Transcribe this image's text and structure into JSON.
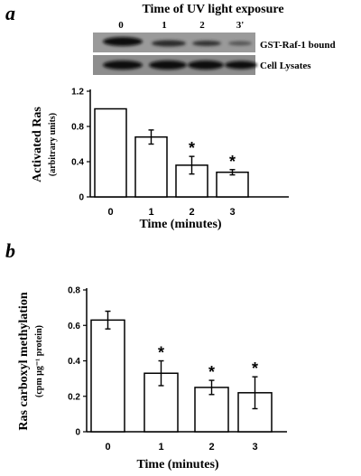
{
  "blot": {
    "title": "Time of UV light exposure",
    "lanes": [
      "0",
      "1",
      "2",
      "3'"
    ],
    "rows": [
      "GST-Raf-1 bound",
      "Cell Lysates"
    ]
  },
  "chart_data": [
    {
      "panel": "a",
      "type": "bar",
      "categories": [
        "0",
        "1",
        "2",
        "3"
      ],
      "values": [
        1.0,
        0.68,
        0.36,
        0.28
      ],
      "errors": [
        0,
        0.08,
        0.1,
        0.03
      ],
      "significant": [
        false,
        false,
        true,
        true
      ],
      "marker": "*",
      "xlabel": "Time (minutes)",
      "ylabel": "Activated Ras",
      "ylabel2": "(arbitrary units)",
      "ylim": [
        0,
        1.2
      ],
      "yticks": [
        0,
        0.4,
        0.8,
        1.2
      ],
      "ytick_labels": [
        "0",
        "0.4",
        "0.8",
        "1.2"
      ],
      "grid": false,
      "colors": {
        "bar_fill": "#ffffff",
        "bar_stroke": "#000000"
      }
    },
    {
      "panel": "b",
      "type": "bar",
      "categories": [
        "0",
        "1",
        "2",
        "3"
      ],
      "values": [
        0.63,
        0.33,
        0.25,
        0.22
      ],
      "errors": [
        0.05,
        0.07,
        0.04,
        0.09
      ],
      "significant": [
        false,
        true,
        true,
        true
      ],
      "marker": "*",
      "xlabel": "Time (minutes)",
      "ylabel": "Ras carboxyl methylation",
      "ylabel2": "(cpm µg⁻¹ protein)",
      "ylim": [
        0,
        0.8
      ],
      "yticks": [
        0,
        0.2,
        0.4,
        0.6,
        0.8
      ],
      "ytick_labels": [
        "0",
        "0.2",
        "0.4",
        "0.6",
        "0.8"
      ],
      "grid": false,
      "colors": {
        "bar_fill": "#ffffff",
        "bar_stroke": "#000000"
      }
    }
  ]
}
